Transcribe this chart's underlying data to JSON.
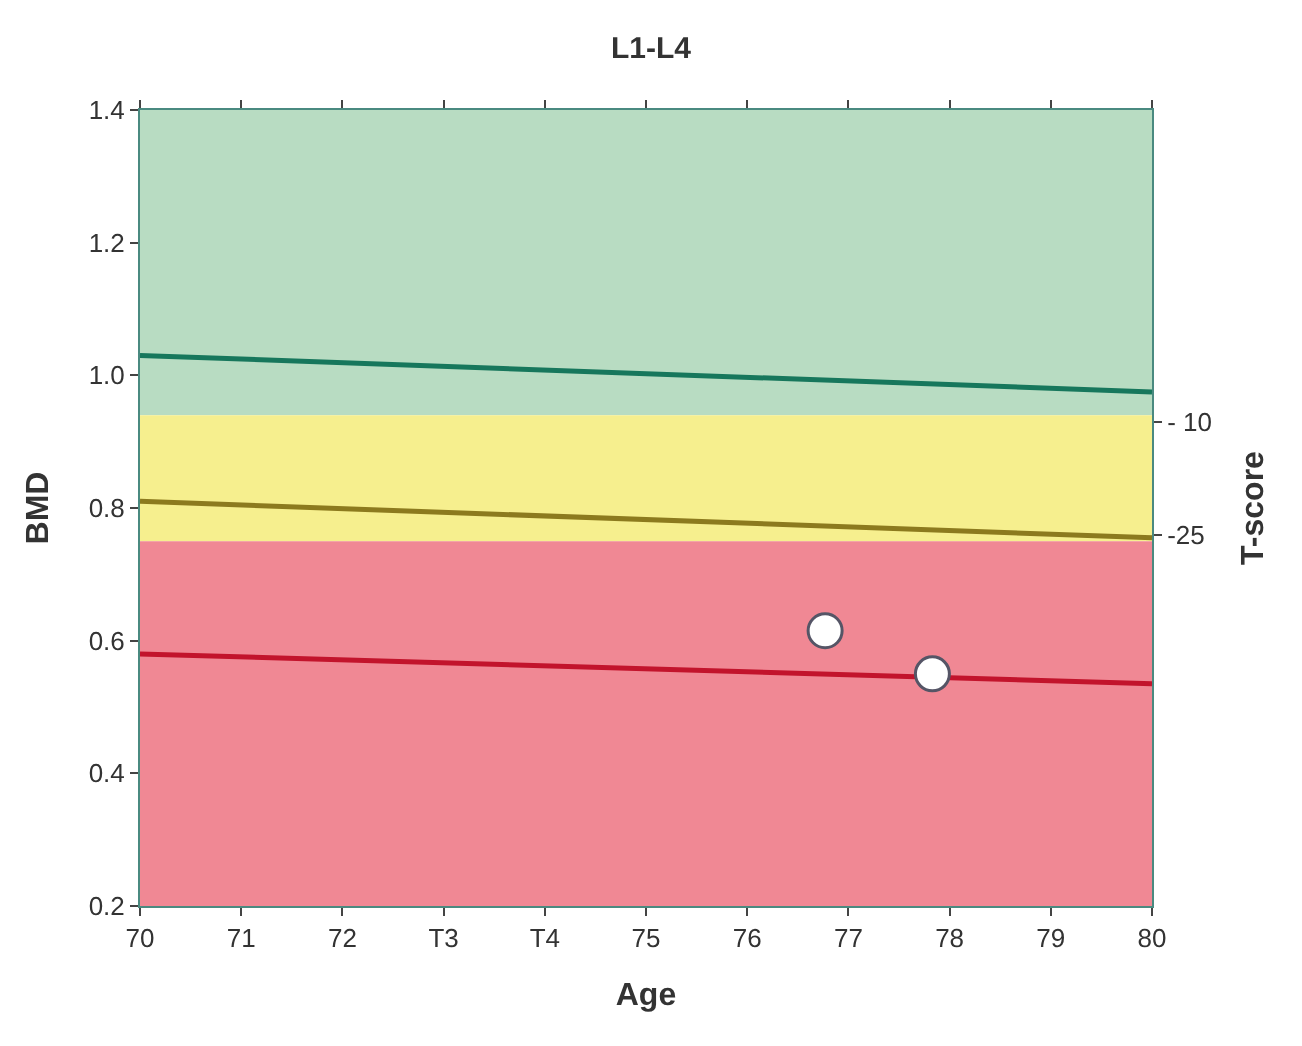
{
  "chart_data": {
    "type": "line",
    "title": "L1-L4",
    "xlabel": "Age",
    "ylabel": "BMD",
    "y2label": "T-score",
    "xlim": [
      70,
      80
    ],
    "xticks": [
      70,
      71,
      72,
      {
        "value": 73,
        "label": "T3"
      },
      {
        "value": 74,
        "label": "T4"
      },
      75,
      76,
      77,
      78,
      79,
      80
    ],
    "ylim": [
      0.2,
      1.4
    ],
    "yticks": [
      0.2,
      0.4,
      0.6,
      0.8,
      {
        "value": 1,
        "label": "1.0"
      },
      1.2,
      1.4
    ],
    "y2lim": [
      -74.4,
      31.5
    ],
    "y2ticks": [
      {
        "value": -10,
        "label": "- 10"
      },
      -25
    ],
    "bands": [
      {
        "axis": "y",
        "from": 0.94,
        "to": 1.4,
        "color": "#b8dcc2"
      },
      {
        "axis": "y",
        "from": 0.75,
        "to": 0.94,
        "color": "#f6ef8e"
      },
      {
        "axis": "y",
        "from": 0.2,
        "to": 0.75,
        "color": "#f08894"
      }
    ],
    "series": [
      {
        "x": [
          70,
          80
        ],
        "values": [
          1.03,
          0.975
        ],
        "color": "#17775c"
      },
      {
        "x": [
          70,
          80
        ],
        "values": [
          0.81,
          0.755
        ],
        "color": "#8c7a1e"
      },
      {
        "x": [
          70,
          80
        ],
        "values": [
          0.58,
          0.535
        ],
        "color": "#c2142c"
      },
      {
        "type": "scatter",
        "x": [
          76.77,
          77.83
        ],
        "values": [
          0.615,
          0.55
        ],
        "color": "#ffffff",
        "marker": "circle"
      }
    ],
    "line_style": "solid",
    "grid": false
  }
}
